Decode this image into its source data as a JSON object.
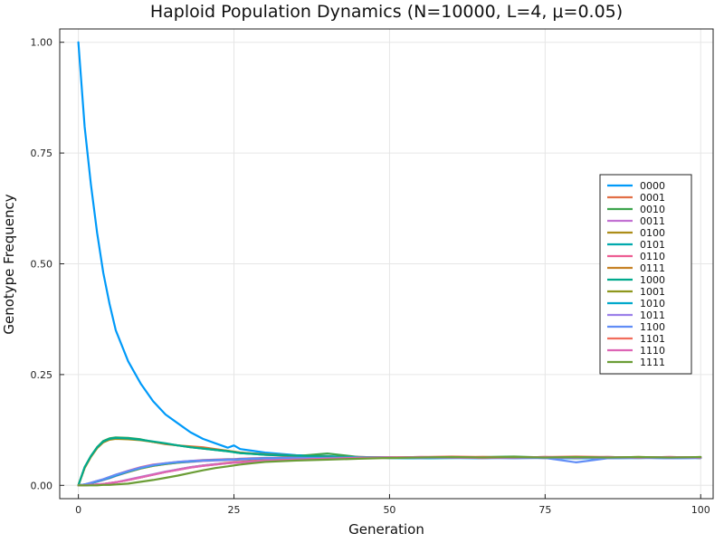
{
  "chart_data": {
    "type": "line",
    "title": "Haploid Population Dynamics (N=10000, L=4, μ=0.05)",
    "xlabel": "Generation",
    "ylabel": "Genotype Frequency",
    "xlim": [
      -3,
      102
    ],
    "ylim": [
      -0.03,
      1.03
    ],
    "x_ticks": [
      0,
      25,
      50,
      75,
      100
    ],
    "x_tick_labels": [
      "0",
      "25",
      "50",
      "75",
      "100"
    ],
    "y_ticks": [
      0,
      0.25,
      0.5,
      0.75,
      1.0
    ],
    "y_tick_labels": [
      "0.00",
      "0.25",
      "0.50",
      "0.75",
      "1.00"
    ],
    "grid": true,
    "legend_position": "right",
    "x": [
      0,
      1,
      2,
      3,
      4,
      5,
      6,
      8,
      10,
      12,
      14,
      16,
      18,
      20,
      22,
      24,
      25,
      26,
      28,
      30,
      35,
      40,
      45,
      50,
      55,
      60,
      65,
      70,
      75,
      80,
      85,
      90,
      95,
      100
    ],
    "series": [
      {
        "name": "0000",
        "color": "#009af9",
        "values": [
          1.0,
          0.81,
          0.68,
          0.57,
          0.48,
          0.41,
          0.35,
          0.28,
          0.23,
          0.19,
          0.16,
          0.14,
          0.12,
          0.105,
          0.095,
          0.085,
          0.09,
          0.082,
          0.078,
          0.074,
          0.068,
          0.066,
          0.063,
          0.062,
          0.063,
          0.062,
          0.061,
          0.063,
          0.062,
          0.061,
          0.062,
          0.063,
          0.061,
          0.062
        ]
      },
      {
        "name": "0001",
        "color": "#e26f46",
        "values": [
          0.0,
          0.04,
          0.065,
          0.085,
          0.098,
          0.104,
          0.106,
          0.105,
          0.103,
          0.098,
          0.093,
          0.09,
          0.088,
          0.086,
          0.082,
          0.078,
          0.076,
          0.074,
          0.072,
          0.07,
          0.067,
          0.065,
          0.064,
          0.063,
          0.062,
          0.064,
          0.063,
          0.062,
          0.063,
          0.062,
          0.063,
          0.064,
          0.062,
          0.063
        ]
      },
      {
        "name": "0010",
        "color": "#3da44d",
        "values": [
          0.0,
          0.04,
          0.066,
          0.086,
          0.1,
          0.106,
          0.108,
          0.107,
          0.104,
          0.098,
          0.094,
          0.09,
          0.086,
          0.083,
          0.08,
          0.077,
          0.075,
          0.073,
          0.071,
          0.069,
          0.066,
          0.072,
          0.064,
          0.062,
          0.061,
          0.063,
          0.064,
          0.065,
          0.063,
          0.062,
          0.064,
          0.063,
          0.062,
          0.064
        ]
      },
      {
        "name": "0011",
        "color": "#c271d2",
        "values": [
          0.0,
          0.002,
          0.005,
          0.008,
          0.012,
          0.016,
          0.021,
          0.03,
          0.038,
          0.044,
          0.048,
          0.051,
          0.053,
          0.055,
          0.056,
          0.057,
          0.057,
          0.058,
          0.059,
          0.06,
          0.061,
          0.062,
          0.062,
          0.063,
          0.062,
          0.063,
          0.062,
          0.063,
          0.062,
          0.063,
          0.062,
          0.063,
          0.062,
          0.063
        ]
      },
      {
        "name": "0100",
        "color": "#ac8d18",
        "values": [
          0.0,
          0.039,
          0.064,
          0.084,
          0.097,
          0.103,
          0.105,
          0.104,
          0.102,
          0.098,
          0.094,
          0.09,
          0.087,
          0.084,
          0.081,
          0.078,
          0.076,
          0.074,
          0.072,
          0.07,
          0.067,
          0.065,
          0.064,
          0.063,
          0.062,
          0.063,
          0.062,
          0.063,
          0.064,
          0.062,
          0.063,
          0.062,
          0.063,
          0.062
        ]
      },
      {
        "name": "0101",
        "color": "#00a9ad",
        "values": [
          0.0,
          0.002,
          0.005,
          0.009,
          0.013,
          0.018,
          0.022,
          0.031,
          0.039,
          0.045,
          0.049,
          0.052,
          0.054,
          0.056,
          0.057,
          0.058,
          0.058,
          0.059,
          0.06,
          0.061,
          0.062,
          0.062,
          0.063,
          0.062,
          0.061,
          0.062,
          0.063,
          0.062,
          0.063,
          0.062,
          0.063,
          0.062,
          0.063,
          0.062
        ]
      },
      {
        "name": "0110",
        "color": "#ed5e93",
        "values": [
          0.0,
          0.002,
          0.006,
          0.01,
          0.014,
          0.019,
          0.024,
          0.033,
          0.041,
          0.047,
          0.05,
          0.053,
          0.055,
          0.057,
          0.058,
          0.059,
          0.059,
          0.06,
          0.061,
          0.062,
          0.063,
          0.063,
          0.064,
          0.063,
          0.064,
          0.063,
          0.064,
          0.063,
          0.064,
          0.063,
          0.064,
          0.063,
          0.064,
          0.063
        ]
      },
      {
        "name": "0111",
        "color": "#c68225",
        "values": [
          0.0,
          0.0,
          0.001,
          0.002,
          0.003,
          0.005,
          0.007,
          0.012,
          0.018,
          0.024,
          0.03,
          0.036,
          0.041,
          0.045,
          0.048,
          0.051,
          0.052,
          0.053,
          0.055,
          0.057,
          0.059,
          0.061,
          0.062,
          0.063,
          0.062,
          0.063,
          0.064,
          0.063,
          0.062,
          0.063,
          0.062,
          0.063,
          0.062,
          0.063
        ]
      },
      {
        "name": "1000",
        "color": "#00a98d",
        "values": [
          0.0,
          0.041,
          0.066,
          0.086,
          0.099,
          0.105,
          0.107,
          0.106,
          0.103,
          0.099,
          0.095,
          0.09,
          0.086,
          0.083,
          0.08,
          0.077,
          0.075,
          0.073,
          0.071,
          0.069,
          0.067,
          0.065,
          0.064,
          0.063,
          0.062,
          0.063,
          0.062,
          0.063,
          0.062,
          0.063,
          0.062,
          0.063,
          0.062,
          0.063
        ]
      },
      {
        "name": "1001",
        "color": "#8e971d",
        "values": [
          0.0,
          0.002,
          0.005,
          0.009,
          0.013,
          0.017,
          0.022,
          0.03,
          0.038,
          0.044,
          0.048,
          0.051,
          0.054,
          0.056,
          0.057,
          0.058,
          0.058,
          0.059,
          0.06,
          0.061,
          0.062,
          0.062,
          0.063,
          0.062,
          0.063,
          0.064,
          0.063,
          0.064,
          0.063,
          0.062,
          0.063,
          0.064,
          0.063,
          0.062
        ]
      },
      {
        "name": "1010",
        "color": "#00a8cb",
        "values": [
          0.0,
          0.002,
          0.005,
          0.009,
          0.013,
          0.017,
          0.022,
          0.031,
          0.039,
          0.045,
          0.049,
          0.052,
          0.054,
          0.056,
          0.057,
          0.058,
          0.058,
          0.059,
          0.06,
          0.061,
          0.062,
          0.062,
          0.063,
          0.062,
          0.061,
          0.062,
          0.063,
          0.062,
          0.063,
          0.062,
          0.061,
          0.062,
          0.063,
          0.062
        ]
      },
      {
        "name": "1011",
        "color": "#9b7fe9",
        "values": [
          0.0,
          0.0,
          0.001,
          0.002,
          0.003,
          0.005,
          0.007,
          0.013,
          0.019,
          0.025,
          0.031,
          0.036,
          0.041,
          0.045,
          0.048,
          0.05,
          0.051,
          0.052,
          0.054,
          0.056,
          0.058,
          0.06,
          0.062,
          0.063,
          0.062,
          0.063,
          0.062,
          0.063,
          0.062,
          0.063,
          0.062,
          0.063,
          0.062,
          0.063
        ]
      },
      {
        "name": "1100",
        "color": "#618df6",
        "values": [
          0.0,
          0.002,
          0.006,
          0.01,
          0.014,
          0.019,
          0.024,
          0.032,
          0.04,
          0.046,
          0.05,
          0.053,
          0.055,
          0.056,
          0.057,
          0.058,
          0.058,
          0.059,
          0.06,
          0.061,
          0.062,
          0.062,
          0.063,
          0.063,
          0.062,
          0.063,
          0.062,
          0.061,
          0.062,
          0.052,
          0.061,
          0.062,
          0.061,
          0.062
        ]
      },
      {
        "name": "1101",
        "color": "#f16c5c",
        "values": [
          0.0,
          0.0,
          0.001,
          0.002,
          0.003,
          0.005,
          0.007,
          0.012,
          0.018,
          0.024,
          0.03,
          0.035,
          0.04,
          0.044,
          0.047,
          0.05,
          0.051,
          0.052,
          0.054,
          0.056,
          0.058,
          0.06,
          0.062,
          0.063,
          0.064,
          0.065,
          0.064,
          0.063,
          0.064,
          0.065,
          0.064,
          0.063,
          0.064,
          0.063
        ]
      },
      {
        "name": "1110",
        "color": "#dd64b5",
        "values": [
          0.0,
          0.0,
          0.001,
          0.002,
          0.003,
          0.005,
          0.007,
          0.012,
          0.018,
          0.024,
          0.03,
          0.035,
          0.04,
          0.044,
          0.047,
          0.05,
          0.051,
          0.052,
          0.054,
          0.056,
          0.058,
          0.06,
          0.062,
          0.063,
          0.064,
          0.063,
          0.062,
          0.063,
          0.064,
          0.063,
          0.064,
          0.063,
          0.064,
          0.063
        ]
      },
      {
        "name": "1111",
        "color": "#6b9d36",
        "values": [
          0.0,
          0.0,
          0.0,
          0.0,
          0.001,
          0.001,
          0.002,
          0.004,
          0.008,
          0.012,
          0.017,
          0.022,
          0.028,
          0.034,
          0.039,
          0.043,
          0.045,
          0.047,
          0.05,
          0.053,
          0.056,
          0.058,
          0.06,
          0.062,
          0.063,
          0.064,
          0.063,
          0.064,
          0.063,
          0.064,
          0.063,
          0.064,
          0.063,
          0.064
        ]
      }
    ]
  }
}
